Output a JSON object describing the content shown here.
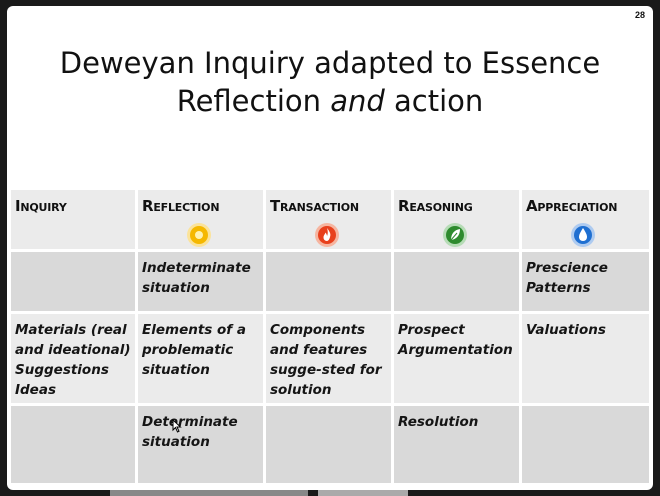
{
  "slide": {
    "number": "28",
    "title_line1": "Deweyan Inquiry adapted to Essence",
    "title_line2_a": "Reflection ",
    "title_line2_em": "and",
    "title_line2_b": " action"
  },
  "table": {
    "headers": [
      {
        "label": "Inquiry",
        "icon": ""
      },
      {
        "label": "Reflection",
        "icon": "sun-icon",
        "color": "#f5b800"
      },
      {
        "label": "Transaction",
        "icon": "flame-icon",
        "color": "#e8401c"
      },
      {
        "label": "Reasoning",
        "icon": "leaf-icon",
        "color": "#2e8b2e"
      },
      {
        "label": "Appreciation",
        "icon": "water-drop-icon",
        "color": "#1f6fd1"
      }
    ],
    "rows": [
      [
        "",
        "Indeterminate situation",
        "",
        "",
        "Prescience Patterns"
      ],
      [
        "Materials (real and ideational) Suggestions Ideas",
        "Elements of a problematic situation",
        "Components and features sugge-sted for solution",
        "Prospect Argumentation",
        "Valuations"
      ],
      [
        "",
        "Determinate situation",
        "",
        "Resolution",
        ""
      ]
    ]
  }
}
